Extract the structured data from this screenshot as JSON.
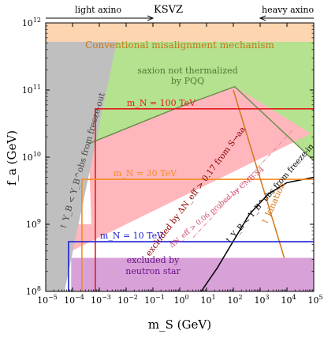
{
  "chart_data": {
    "type": "area",
    "title": "KSVZ",
    "xlabel": "m_S (GeV)",
    "ylabel": "f_a (GeV)",
    "x_scale": "log",
    "y_scale": "log",
    "xlim_log10": [
      -5,
      5
    ],
    "ylim_log10": [
      8,
      12
    ],
    "x_ticks": [
      {
        "exp": -5,
        "label": "10",
        "sup": "−5"
      },
      {
        "exp": -4,
        "label": "10",
        "sup": "−4"
      },
      {
        "exp": -3,
        "label": "10",
        "sup": "−3"
      },
      {
        "exp": -2,
        "label": "10",
        "sup": "−2"
      },
      {
        "exp": -1,
        "label": "10",
        "sup": "−1"
      },
      {
        "exp": 0,
        "label": "10",
        "sup": "0"
      },
      {
        "exp": 1,
        "label": "10",
        "sup": "1"
      },
      {
        "exp": 2,
        "label": "10",
        "sup": "2"
      },
      {
        "exp": 3,
        "label": "10",
        "sup": "3"
      },
      {
        "exp": 4,
        "label": "10",
        "sup": "4"
      },
      {
        "exp": 5,
        "label": "10",
        "sup": "5"
      }
    ],
    "y_ticks": [
      {
        "exp": 8,
        "label": "10",
        "sup": "8"
      },
      {
        "exp": 9,
        "label": "10",
        "sup": "9"
      },
      {
        "exp": 10,
        "label": "10",
        "sup": "10"
      },
      {
        "exp": 11,
        "label": "10",
        "sup": "11"
      },
      {
        "exp": 12,
        "label": "10",
        "sup": "12"
      }
    ],
    "top_labels": {
      "left": "light axino",
      "right": "heavy axino",
      "left_arrow_to_log10_mS": -1,
      "right_arrow_from_log10_mS": 3
    },
    "regions": [
      {
        "name": "Conventional misalignment mechanism",
        "color": "#fdd5b0",
        "log10_fa_range": [
          11.72,
          12
        ]
      },
      {
        "name": "saxion not thermalized by PQQ",
        "color": "#b4e28e"
      },
      {
        "name": "excluded by ΔN_eff > 0.17 from S→aa",
        "color": "#ffb7bd"
      },
      {
        "name": "excluded by neutron star",
        "color": "#d8a2d8",
        "log10_fa_upper": 8.5
      },
      {
        "name": "Y_B < Y_B^obs from freeze-out",
        "color": "#bfbfbf"
      }
    ],
    "saxion_boundary": [
      {
        "log10_mS": -3.4,
        "log10_fa": 10.2
      },
      {
        "log10_mS": 0,
        "log10_fa": 10.75
      },
      {
        "log10_mS": 2.05,
        "log10_fa": 11.05
      },
      {
        "log10_mS": 5,
        "log10_fa": 9.95
      }
    ],
    "grey_region_top": {
      "log10_mS_at_bottom": -4.3,
      "log10_mS_at_top": -2.35,
      "log10_fa_top": 11.72
    },
    "cmb_line": {
      "label": "ΔN_eff > 0.06 probed by CMB-S4",
      "color": "#e3869a",
      "points": [
        {
          "log10_mS": 0.5,
          "log10_fa": 8.8
        },
        {
          "log10_mS": 4.2,
          "log10_fa": 10.4
        }
      ]
    },
    "pink_region_upper_edge": [
      {
        "log10_mS": -3.3,
        "log10_fa": 9.0
      },
      {
        "log10_mS": 2.05,
        "log10_fa": 11.05
      }
    ],
    "pink_region_lower_edge": [
      {
        "log10_mS": -4.3,
        "log10_fa": 8.55
      },
      {
        "log10_mS": 4.9,
        "log10_fa": 10.35
      }
    ],
    "kination_line": {
      "label": "kination",
      "color": "#d2761a",
      "points": [
        {
          "log10_mS": 2.0,
          "log10_fa": 11.0
        },
        {
          "log10_mS": 3.9,
          "log10_fa": 8.5
        }
      ]
    },
    "freeze_in_curve": {
      "label": "Y_B < Y_B^obs from freeze-in",
      "color": "#000000",
      "points": [
        {
          "log10_mS": 0.8,
          "log10_fa": 8.0
        },
        {
          "log10_mS": 1.4,
          "log10_fa": 8.35
        },
        {
          "log10_mS": 2.0,
          "log10_fa": 8.75
        },
        {
          "log10_mS": 2.6,
          "log10_fa": 9.15
        },
        {
          "log10_mS": 3.3,
          "log10_fa": 9.45
        },
        {
          "log10_mS": 4.0,
          "log10_fa": 9.62
        },
        {
          "log10_mS": 5.0,
          "log10_fa": 9.7
        }
      ]
    },
    "mN_boxes": [
      {
        "label": "m_N = 100 TeV",
        "color": "#e31a1c",
        "log10_mS_left": -3.15,
        "log10_fa_top": 10.72
      },
      {
        "label": "m_N = 30 TeV",
        "color": "#f58b1f",
        "log10_mS_left": -3.65,
        "log10_fa_top": 9.67
      },
      {
        "label": "m_N = 10 TeV",
        "color": "#1f1fd6",
        "log10_mS_left": -4.15,
        "log10_fa_top": 8.74
      }
    ],
    "annotations": {
      "misalignment": "Conventional misalignment mechanism",
      "saxion_line1": "saxion not thermalized",
      "saxion_line2": "by PQQ",
      "freeze_out": "↑ Y_B < Y_B^obs from freeze-out",
      "excluded_dneff": "excluded by ΔN_eff > 0.17 from S→aa",
      "cmb_s4": "ΔN_eff > 0.06 probed by CMB-S4",
      "freeze_in": "↑ Y_B < Y_B^obs from freeze-in",
      "kination": "↑ kination",
      "neutron_star_line1": "excluded by",
      "neutron_star_line2": "neutron star"
    }
  }
}
